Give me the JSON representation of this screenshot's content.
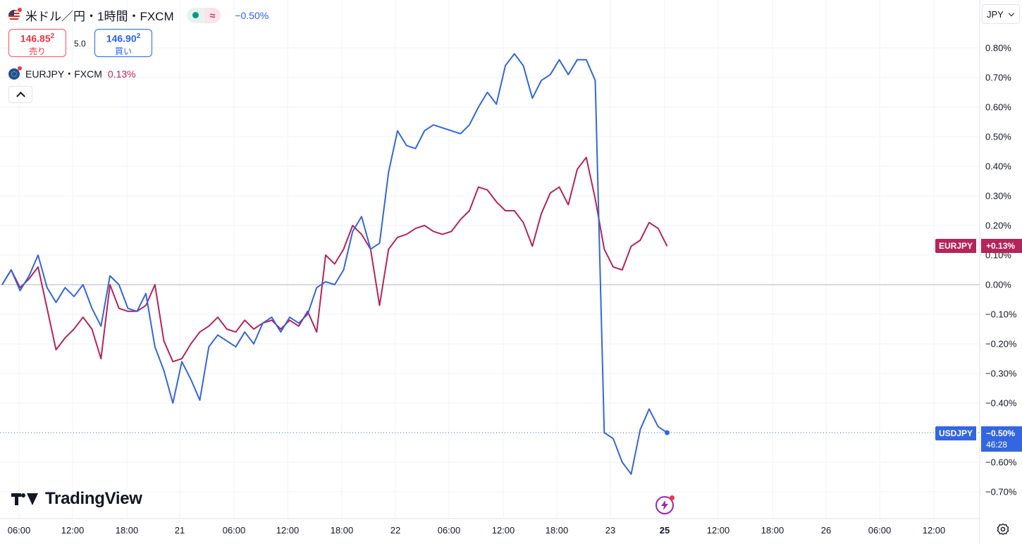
{
  "header": {
    "title": "米ドル／円・1時間・FXCM",
    "change": "−0.50%",
    "status_symbol": "≈"
  },
  "trade": {
    "sell_price_main": "146.85",
    "sell_price_sup": "2",
    "sell_label": "売り",
    "spread": "5.0",
    "buy_price_main": "146.90",
    "buy_price_sup": "2",
    "buy_label": "買い"
  },
  "compare": {
    "symbol": "EURJPY・FXCM",
    "change": "0.13%"
  },
  "currency_selector": "JPY",
  "logo_text": "TradingView",
  "badges": {
    "eurjpy_name": "EURJPY",
    "eurjpy_value": "+0.13%",
    "usdjpy_name": "USDJPY",
    "usdjpy_value": "−0.50%",
    "usdjpy_countdown": "46:28"
  },
  "icons": {
    "flag_main": "us-flag-icon",
    "flag_compare": "eu-flag-icon",
    "event": "lightning-event-icon",
    "settings": "gear-icon",
    "collapse": "chevron-up-icon"
  },
  "colors": {
    "usdjpy": "#3366e0",
    "eurjpy": "#b5245a",
    "grid": "#f0f3fa",
    "zero_line": "#b2b5be",
    "axis_text": "#131722"
  },
  "chart_data": {
    "type": "line",
    "x_step": "1 hour",
    "x_ticks": [
      "06:00",
      "12:00",
      "18:00",
      "21",
      "06:00",
      "12:00",
      "18:00",
      "22",
      "06:00",
      "12:00",
      "18:00",
      "23",
      "25",
      "12:00",
      "18:00",
      "26",
      "06:00",
      "12:00"
    ],
    "y_ticks": [
      "0.80%",
      "0.70%",
      "0.60%",
      "0.50%",
      "0.40%",
      "0.30%",
      "0.20%",
      "0.10%",
      "0.00%",
      "−0.10%",
      "−0.20%",
      "−0.30%",
      "−0.40%",
      "−0.60%",
      "−0.70%"
    ],
    "ylim": [
      -0.75,
      0.85
    ],
    "y_unit": "%",
    "zero_line": true,
    "grid": true,
    "series": [
      {
        "name": "USDJPY",
        "values": [
          0.0,
          0.05,
          -0.02,
          0.03,
          0.1,
          -0.01,
          -0.06,
          -0.01,
          -0.04,
          0.0,
          -0.08,
          -0.14,
          0.03,
          0.0,
          -0.08,
          -0.09,
          -0.03,
          -0.21,
          -0.29,
          -0.4,
          -0.26,
          -0.32,
          -0.39,
          -0.21,
          -0.17,
          -0.19,
          -0.21,
          -0.16,
          -0.2,
          -0.13,
          -0.11,
          -0.16,
          -0.11,
          -0.13,
          -0.1,
          -0.01,
          0.01,
          0.0,
          0.05,
          0.18,
          0.23,
          0.12,
          0.14,
          0.38,
          0.52,
          0.47,
          0.46,
          0.52,
          0.54,
          0.53,
          0.52,
          0.51,
          0.54,
          0.6,
          0.65,
          0.61,
          0.74,
          0.78,
          0.74,
          0.63,
          0.69,
          0.71,
          0.76,
          0.71,
          0.76,
          0.76,
          0.69,
          -0.5,
          -0.52,
          -0.6,
          -0.64,
          -0.49,
          -0.42,
          -0.48,
          -0.5
        ]
      },
      {
        "name": "EURJPY",
        "values": [
          0.0,
          0.05,
          -0.01,
          0.02,
          0.06,
          -0.08,
          -0.22,
          -0.18,
          -0.15,
          -0.11,
          -0.15,
          -0.25,
          0.0,
          -0.08,
          -0.09,
          -0.09,
          -0.07,
          0.0,
          -0.19,
          -0.26,
          -0.25,
          -0.2,
          -0.16,
          -0.14,
          -0.11,
          -0.15,
          -0.16,
          -0.12,
          -0.15,
          -0.13,
          -0.12,
          -0.15,
          -0.12,
          -0.14,
          -0.09,
          -0.16,
          0.1,
          0.07,
          0.12,
          0.2,
          0.17,
          0.12,
          -0.07,
          0.12,
          0.16,
          0.17,
          0.19,
          0.2,
          0.18,
          0.17,
          0.18,
          0.22,
          0.25,
          0.33,
          0.32,
          0.28,
          0.25,
          0.25,
          0.21,
          0.13,
          0.24,
          0.31,
          0.33,
          0.27,
          0.39,
          0.43,
          0.29,
          0.12,
          0.06,
          0.05,
          0.13,
          0.15,
          0.21,
          0.19,
          0.13
        ]
      }
    ]
  }
}
